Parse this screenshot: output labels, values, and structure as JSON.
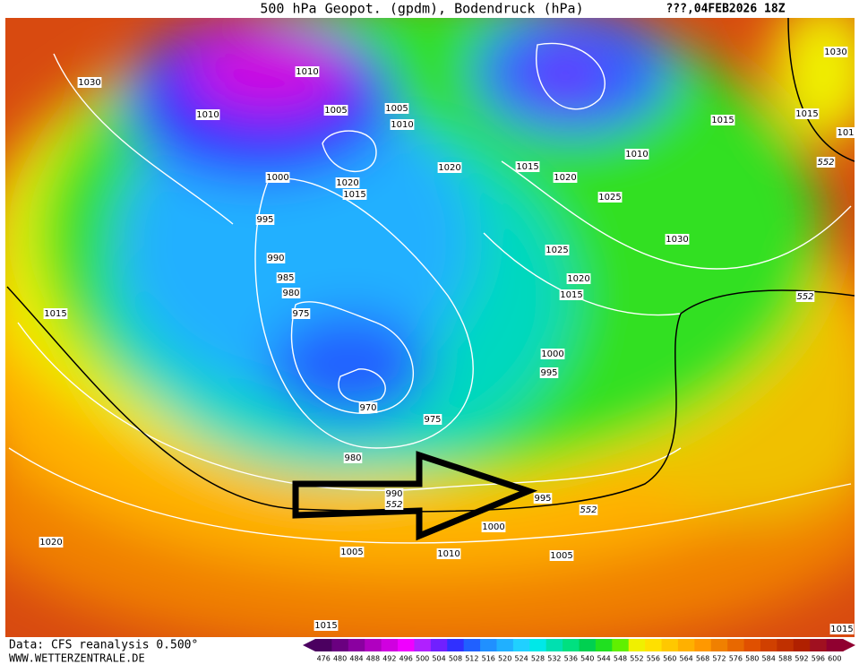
{
  "header": {
    "title": "500 hPa Geopot. (gpdm), Bodendruck (hPa)",
    "date": "???,04FEB2026 18Z"
  },
  "footer": {
    "source": "Data: CFS reanalysis 0.500°",
    "site": "WWW.WETTERZENTRALE.DE"
  },
  "isobar_labels": [
    "1030",
    "1010",
    "1010",
    "1005",
    "1005",
    "1010",
    "1020",
    "1015",
    "1020",
    "1010",
    "1015",
    "1015",
    "1030",
    "1000",
    "1020",
    "1015",
    "995",
    "1025",
    "1030",
    "1025",
    "1020",
    "1015",
    "990",
    "985",
    "980",
    "975",
    "1015",
    "970",
    "975",
    "1000",
    "995",
    "980",
    "990",
    "995",
    "1000",
    "1020",
    "1005",
    "1010",
    "1005",
    "1015",
    "1015",
    "101"
  ],
  "contour_labels": [
    "552",
    "552",
    "552",
    "552"
  ],
  "legend": {
    "levels": [
      476,
      480,
      484,
      488,
      492,
      496,
      500,
      504,
      508,
      512,
      516,
      520,
      524,
      528,
      532,
      536,
      540,
      544,
      548,
      552,
      556,
      560,
      564,
      568,
      572,
      576,
      580,
      584,
      588,
      592,
      596,
      600
    ],
    "colors": [
      "#4b0060",
      "#6a0080",
      "#8a00a0",
      "#b000c0",
      "#d000e0",
      "#f000ff",
      "#b020ff",
      "#7020ff",
      "#3030ff",
      "#2060ff",
      "#2090ff",
      "#20b0ff",
      "#20d0ff",
      "#00e8e8",
      "#00e0b0",
      "#00e080",
      "#00d050",
      "#20e020",
      "#60f000",
      "#f0f000",
      "#ffe000",
      "#ffc800",
      "#ffb000",
      "#ff9800",
      "#f08000",
      "#e86800",
      "#e05000",
      "#d04000",
      "#c03000",
      "#b02000",
      "#a01020",
      "#900030"
    ]
  }
}
